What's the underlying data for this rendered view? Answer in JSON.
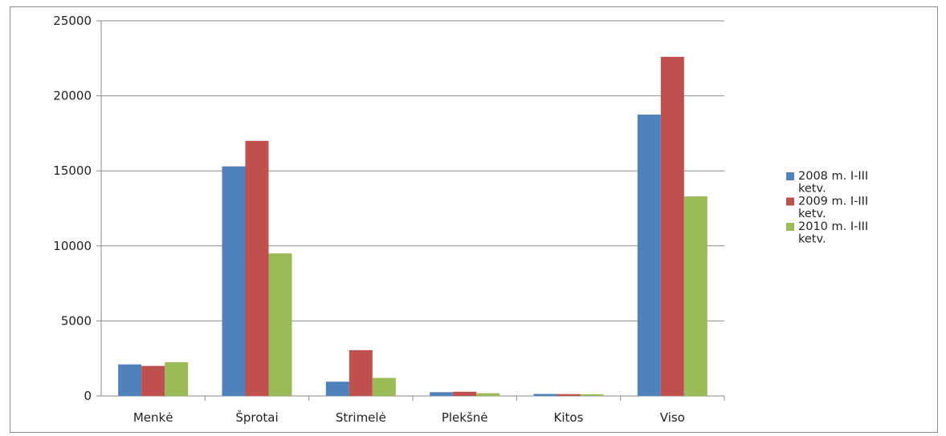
{
  "chart_data": {
    "type": "bar",
    "categories": [
      "Menkė",
      "Šprotai",
      "Strimelė",
      "Plekšnė",
      "Kitos",
      "Viso"
    ],
    "series": [
      {
        "name": "2008 m. I-III ketv.",
        "color": "#4f81bd",
        "values": [
          2100,
          15300,
          950,
          250,
          130,
          18750
        ]
      },
      {
        "name": "2009 m. I-III ketv.",
        "color": "#c0504d",
        "values": [
          2000,
          17000,
          3050,
          280,
          120,
          22600
        ]
      },
      {
        "name": "2010 m. I-III ketv.",
        "color": "#9bbb59",
        "values": [
          2250,
          9500,
          1200,
          180,
          110,
          13300
        ]
      }
    ],
    "ylim": [
      0,
      25000
    ],
    "yticks": [
      0,
      5000,
      10000,
      15000,
      20000,
      25000
    ],
    "ytick_labels": [
      "0",
      "5000",
      "10000",
      "15000",
      "20000",
      "25000"
    ],
    "grid": true,
    "legend_position": "right",
    "legend_lines": [
      [
        "2008 m. I-III",
        "ketv."
      ],
      [
        "2009 m. I-III",
        "ketv."
      ],
      [
        "2010 m. I-III",
        "ketv."
      ]
    ],
    "title": "",
    "xlabel": "",
    "ylabel": ""
  }
}
